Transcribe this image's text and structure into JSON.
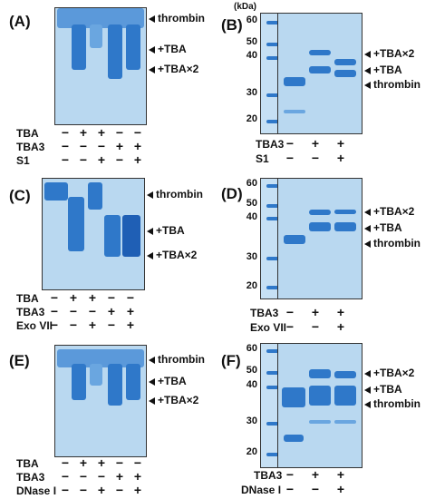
{
  "panels": {
    "A": {
      "label": "(A)",
      "annotations": [
        "thrombin",
        "+TBA",
        "+TBA×2"
      ],
      "rows": [
        {
          "label": "TBA",
          "signs": [
            "−",
            "+",
            "+",
            "−",
            "−"
          ]
        },
        {
          "label": "TBA3",
          "signs": [
            "−",
            "−",
            "−",
            "+",
            "+"
          ]
        },
        {
          "label": "S1",
          "signs": [
            "−",
            "−",
            "+",
            "−",
            "+"
          ]
        }
      ]
    },
    "B": {
      "label": "(B)",
      "unit": "(kDa)",
      "ladder_marks": [
        "60",
        "50",
        "40",
        "30",
        "20"
      ],
      "annotations": [
        "+TBA×2",
        "+TBA",
        "thrombin"
      ],
      "rows": [
        {
          "label": "TBA3",
          "signs": [
            "−",
            "+",
            "+"
          ]
        },
        {
          "label": "S1",
          "signs": [
            "−",
            "−",
            "+"
          ]
        }
      ]
    },
    "C": {
      "label": "(C)",
      "annotations": [
        "thrombin",
        "+TBA",
        "+TBA×2"
      ],
      "rows": [
        {
          "label": "TBA",
          "signs": [
            "−",
            "+",
            "+",
            "−",
            "−"
          ]
        },
        {
          "label": "TBA3",
          "signs": [
            "−",
            "−",
            "−",
            "+",
            "+"
          ]
        },
        {
          "label": "Exo VII",
          "signs": [
            "−",
            "−",
            "+",
            "−",
            "+"
          ]
        }
      ]
    },
    "D": {
      "label": "(D)",
      "ladder_marks": [
        "60",
        "50",
        "40",
        "30",
        "20"
      ],
      "annotations": [
        "+TBA×2",
        "+TBA",
        "thrombin"
      ],
      "rows": [
        {
          "label": "TBA3",
          "signs": [
            "−",
            "+",
            "+"
          ]
        },
        {
          "label": "Exo VII",
          "signs": [
            "−",
            "−",
            "+"
          ]
        }
      ]
    },
    "E": {
      "label": "(E)",
      "annotations": [
        "thrombin",
        "+TBA",
        "+TBA×2"
      ],
      "rows": [
        {
          "label": "TBA",
          "signs": [
            "−",
            "+",
            "+",
            "−",
            "−"
          ]
        },
        {
          "label": "TBA3",
          "signs": [
            "−",
            "−",
            "−",
            "+",
            "+"
          ]
        },
        {
          "label": "DNase I",
          "signs": [
            "−",
            "−",
            "+",
            "−",
            "+"
          ]
        }
      ]
    },
    "F": {
      "label": "(F)",
      "ladder_marks": [
        "60",
        "50",
        "40",
        "30",
        "20"
      ],
      "annotations": [
        "+TBA×2",
        "+TBA",
        "thrombin"
      ],
      "rows": [
        {
          "label": "TBA3",
          "signs": [
            "−",
            "+",
            "+"
          ]
        },
        {
          "label": "DNase I",
          "signs": [
            "−",
            "−",
            "+"
          ]
        }
      ]
    }
  },
  "colors": {
    "gel": "#b9d8f0",
    "band": "#2f78c9",
    "band_dark": "#1f5fb5"
  }
}
